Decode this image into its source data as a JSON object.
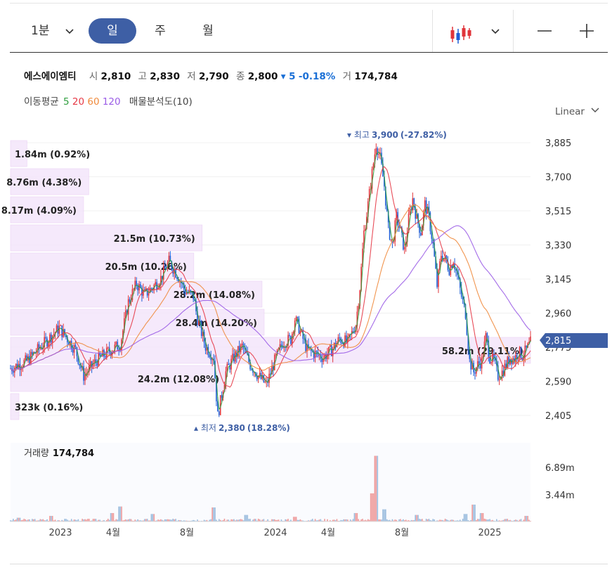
{
  "toolbar": {
    "interval": "1분",
    "tabs": [
      "일",
      "주",
      "월"
    ],
    "selected_tab": "일",
    "chart_type_icon": "candlestick-icon",
    "zoom_out_label": "—",
    "zoom_in_label": "+"
  },
  "stock": {
    "name": "에스에이엠티",
    "open_label": "시",
    "open": "2,810",
    "high_label": "고",
    "high": "2,830",
    "low_label": "저",
    "low": "2,790",
    "close_label": "종",
    "close": "2,800",
    "change": "▾ 5",
    "change_pct": "-0.18%",
    "volume_label": "거",
    "volume": "174,784"
  },
  "indicators": {
    "label": "이동평균",
    "ma": [
      {
        "period": "5",
        "color": "#2e9e3e"
      },
      {
        "period": "20",
        "color": "#e63946"
      },
      {
        "period": "60",
        "color": "#f08a3c"
      },
      {
        "period": "120",
        "color": "#9a5ce6"
      }
    ],
    "vp_label": "매물분석도(10)"
  },
  "scale_label": "Linear",
  "colors": {
    "up": "#e0343a",
    "down": "#1f5fd6",
    "profile": "#f4e6fb",
    "badge": "#3e5fa5"
  },
  "chart_data": {
    "type": "candlestick",
    "price_axis": {
      "ticks": [
        "3,885",
        "3,700",
        "3,515",
        "3,330",
        "3,145",
        "2,960",
        "2,775",
        "2,590",
        "2,405"
      ],
      "ylim": [
        2405,
        3885
      ]
    },
    "current_price": "2,815",
    "high_marker": {
      "label": "최고",
      "value": "3,900",
      "pct": "(-27.82%)"
    },
    "low_marker": {
      "label": "최저",
      "value": "2,380",
      "pct": "(18.28%)"
    },
    "x_ticks": [
      "2023",
      "4월",
      "8월",
      "2024",
      "4월",
      "8월",
      "2025"
    ],
    "price_path": [
      [
        0,
        2660
      ],
      [
        4,
        2700
      ],
      [
        8,
        2790
      ],
      [
        12,
        2880
      ],
      [
        16,
        2760
      ],
      [
        18,
        2620
      ],
      [
        21,
        2700
      ],
      [
        24,
        2750
      ],
      [
        27,
        2790
      ],
      [
        29,
        3020
      ],
      [
        31,
        3120
      ],
      [
        33,
        3060
      ],
      [
        35,
        3100
      ],
      [
        37,
        3150
      ],
      [
        39,
        3240
      ],
      [
        41,
        3170
      ],
      [
        43,
        3080
      ],
      [
        45,
        3050
      ],
      [
        46,
        2930
      ],
      [
        48,
        2780
      ],
      [
        50,
        2720
      ],
      [
        51,
        2400
      ],
      [
        53,
        2640
      ],
      [
        55,
        2720
      ],
      [
        57,
        2780
      ],
      [
        59,
        2680
      ],
      [
        61,
        2620
      ],
      [
        63,
        2570
      ],
      [
        65,
        2700
      ],
      [
        67,
        2800
      ],
      [
        69,
        2820
      ],
      [
        70,
        2930
      ],
      [
        71,
        2880
      ],
      [
        73,
        2760
      ],
      [
        75,
        2740
      ],
      [
        77,
        2720
      ],
      [
        79,
        2760
      ],
      [
        81,
        2820
      ],
      [
        83,
        2800
      ],
      [
        85,
        2900
      ],
      [
        86,
        3100
      ],
      [
        87,
        3400
      ],
      [
        88,
        3550
      ],
      [
        89,
        3720
      ],
      [
        90,
        3880
      ],
      [
        91,
        3800
      ],
      [
        92,
        3650
      ],
      [
        93,
        3420
      ],
      [
        94,
        3330
      ],
      [
        95,
        3480
      ],
      [
        96,
        3400
      ],
      [
        97,
        3300
      ],
      [
        98,
        3470
      ],
      [
        99,
        3580
      ],
      [
        100,
        3470
      ],
      [
        101,
        3400
      ],
      [
        102,
        3550
      ],
      [
        103,
        3480
      ],
      [
        104,
        3330
      ],
      [
        105,
        3110
      ],
      [
        106,
        3280
      ],
      [
        107,
        3250
      ],
      [
        108,
        3200
      ],
      [
        109,
        3250
      ],
      [
        110,
        3160
      ],
      [
        111,
        3050
      ],
      [
        112,
        2960
      ],
      [
        113,
        2700
      ],
      [
        114,
        2640
      ],
      [
        115,
        2680
      ],
      [
        116,
        2700
      ],
      [
        117,
        2830
      ],
      [
        118,
        2720
      ],
      [
        119,
        2700
      ],
      [
        120,
        2620
      ],
      [
        121,
        2640
      ],
      [
        122,
        2680
      ],
      [
        123,
        2720
      ],
      [
        124,
        2710
      ],
      [
        125,
        2750
      ],
      [
        126,
        2730
      ],
      [
        127,
        2760
      ],
      [
        128,
        2800
      ]
    ],
    "volume_profile": [
      {
        "label": "1.84m (0.92%)",
        "pct": 0.92
      },
      {
        "label": "8.76m (4.38%)",
        "pct": 4.38
      },
      {
        "label": "8.17m (4.09%)",
        "pct": 4.09
      },
      {
        "label": "21.5m (10.73%)",
        "pct": 10.73
      },
      {
        "label": "20.5m (10.26%)",
        "pct": 10.26
      },
      {
        "label": "28.2m (14.08%)",
        "pct": 14.08
      },
      {
        "label": "28.4m (14.20%)",
        "pct": 14.2
      },
      {
        "label": "58.2m (29.11%)",
        "pct": 29.11
      },
      {
        "label": "24.2m (12.08%)",
        "pct": 12.08
      },
      {
        "label": "323k (0.16%)",
        "pct": 0.16
      }
    ],
    "volume_panel": {
      "label": "거래량",
      "value": "174,784",
      "ticks": [
        "6.89m",
        "3.44m"
      ],
      "ylim": [
        0,
        6890000
      ],
      "spikes_m": [
        [
          2,
          0.4
        ],
        [
          10,
          0.6
        ],
        [
          25,
          0.9
        ],
        [
          27,
          1.6
        ],
        [
          35,
          0.8
        ],
        [
          50,
          1.5
        ],
        [
          58,
          0.7
        ],
        [
          70,
          0.5
        ],
        [
          85,
          0.9
        ],
        [
          89,
          3.0
        ],
        [
          90,
          7.0
        ],
        [
          92,
          1.3
        ],
        [
          100,
          0.7
        ],
        [
          112,
          0.8
        ],
        [
          114,
          1.8
        ],
        [
          116,
          0.9
        ],
        [
          127,
          0.6
        ]
      ]
    }
  }
}
